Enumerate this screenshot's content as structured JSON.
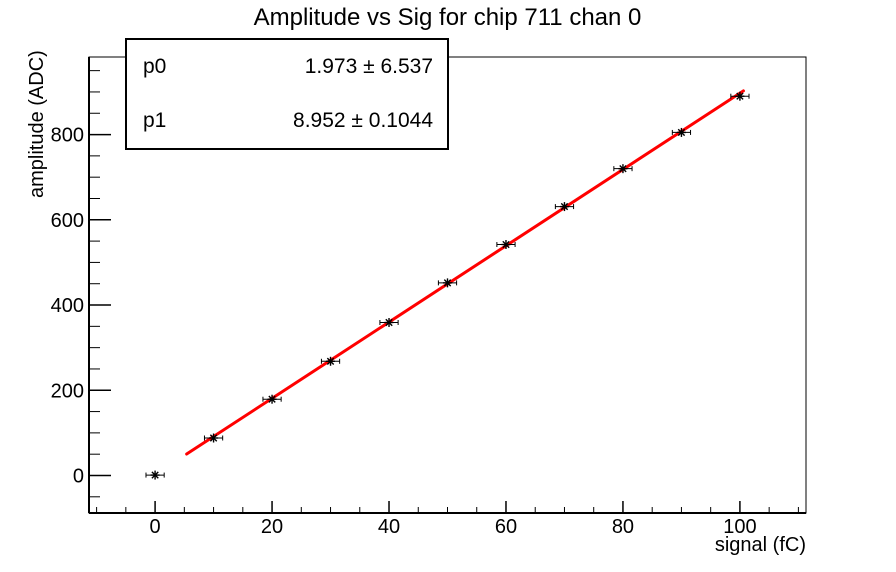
{
  "title": "Amplitude vs Sig for chip 711 chan 0",
  "stats_box": {
    "rows": [
      {
        "name": "p0",
        "value": "1.973 ± 6.537"
      },
      {
        "name": "p1",
        "value": "8.952 ± 0.1044"
      }
    ]
  },
  "chart_data": {
    "type": "scatter",
    "title": "Amplitude vs Sig for chip 711 chan 0",
    "xlabel": "signal (fC)",
    "ylabel": "amplitude (ADC)",
    "xlim": [
      -11.3,
      111.3
    ],
    "ylim": [
      -88,
      982
    ],
    "x_major_ticks": [
      0,
      20,
      40,
      60,
      80,
      100
    ],
    "x_minor_step": 5,
    "y_major_ticks": [
      0,
      200,
      400,
      600,
      800
    ],
    "y_minor_step": 50,
    "grid": false,
    "legend": false,
    "background": "#ffffff",
    "frame_color": "#000000",
    "series": [
      {
        "name": "measurements",
        "type": "scatter",
        "marker": "asterisk",
        "color": "#000000",
        "x": [
          0,
          10,
          20,
          30,
          40,
          50,
          60,
          70,
          80,
          90,
          100
        ],
        "y": [
          1,
          88,
          179,
          268,
          359,
          452,
          542,
          631,
          720,
          805,
          890
        ],
        "xerr": 1.3
      },
      {
        "name": "linear-fit",
        "type": "line",
        "color": "#ff0000",
        "width": 3,
        "fit": {
          "p0": 1.973,
          "p1": 8.952
        },
        "x_range": [
          5.4,
          100.6
        ]
      }
    ]
  }
}
